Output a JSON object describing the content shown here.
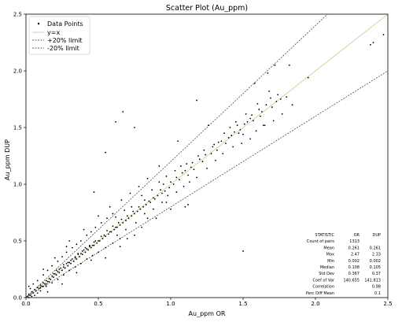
{
  "chart_data": {
    "type": "scatter",
    "title": "Scatter Plot (Au_ppm)",
    "xlabel": "Au_ppm OR",
    "ylabel": "Au_ppm DUP",
    "xlim": [
      0,
      2.5
    ],
    "ylim": [
      0,
      2.5
    ],
    "xticks": [
      "0.0",
      "0.5",
      "1.0",
      "1.5",
      "2.0",
      "2.5"
    ],
    "yticks": [
      "0.0",
      "0.5",
      "1.0",
      "1.5",
      "2.0",
      "2.5"
    ],
    "grid": false,
    "legend": {
      "placement": "top-left",
      "entries": [
        "Data Points",
        "y=x",
        "+20% limit",
        "-20% limit"
      ]
    },
    "colors": {
      "points": "#000000",
      "identity": "#c8d89a",
      "limits": "#333333"
    },
    "lines": [
      {
        "name": "y=x",
        "slope": 1.0
      },
      {
        "name": "+20% limit",
        "slope": 1.2
      },
      {
        "name": "-20% limit",
        "slope": 0.8
      }
    ],
    "points": [
      [
        0.67,
        1.64
      ],
      [
        0.75,
        1.5
      ],
      [
        0.55,
        1.28
      ],
      [
        0.62,
        1.55
      ],
      [
        0.47,
        0.93
      ],
      [
        1.18,
        1.74
      ],
      [
        1.05,
        1.38
      ],
      [
        1.26,
        1.52
      ],
      [
        1.5,
        1.44
      ],
      [
        1.65,
        1.52
      ],
      [
        1.72,
        2.05
      ],
      [
        1.82,
        2.05
      ],
      [
        1.95,
        1.94
      ],
      [
        2.38,
        2.23
      ],
      [
        2.4,
        2.25
      ],
      [
        2.47,
        2.32
      ],
      [
        1.58,
        1.89
      ],
      [
        1.67,
        1.98
      ],
      [
        1.73,
        1.73
      ],
      [
        1.8,
        1.77
      ],
      [
        1.68,
        1.82
      ],
      [
        1.6,
        1.71
      ],
      [
        1.42,
        1.43
      ],
      [
        1.55,
        1.58
      ],
      [
        1.45,
        1.55
      ],
      [
        1.38,
        1.36
      ],
      [
        1.3,
        1.35
      ],
      [
        1.52,
        1.62
      ],
      [
        1.62,
        1.6
      ],
      [
        1.48,
        1.48
      ],
      [
        1.22,
        1.2
      ],
      [
        1.12,
        1.08
      ],
      [
        1.0,
        1.02
      ],
      [
        0.95,
        1.0
      ],
      [
        0.92,
        1.16
      ],
      [
        0.84,
        0.7
      ],
      [
        0.8,
        0.62
      ],
      [
        0.7,
        0.52
      ],
      [
        1.1,
        0.8
      ],
      [
        1.12,
        0.82
      ],
      [
        0.97,
        0.84
      ],
      [
        0.94,
        0.92
      ],
      [
        0.88,
        0.88
      ],
      [
        0.85,
        0.85
      ],
      [
        0.82,
        0.86
      ],
      [
        0.78,
        0.8
      ],
      [
        0.74,
        0.76
      ],
      [
        0.7,
        0.72
      ],
      [
        0.66,
        0.69
      ],
      [
        0.64,
        0.66
      ],
      [
        0.62,
        0.62
      ],
      [
        0.6,
        0.63
      ],
      [
        0.58,
        0.58
      ],
      [
        0.56,
        0.59
      ],
      [
        0.54,
        0.55
      ],
      [
        0.52,
        0.54
      ],
      [
        0.5,
        0.5
      ],
      [
        0.48,
        0.5
      ],
      [
        0.46,
        0.46
      ],
      [
        0.44,
        0.46
      ],
      [
        0.42,
        0.43
      ],
      [
        0.4,
        0.42
      ],
      [
        0.38,
        0.39
      ],
      [
        0.36,
        0.38
      ],
      [
        0.34,
        0.35
      ],
      [
        0.32,
        0.34
      ],
      [
        0.3,
        0.31
      ],
      [
        0.28,
        0.3
      ],
      [
        0.26,
        0.27
      ],
      [
        0.24,
        0.26
      ],
      [
        0.22,
        0.23
      ],
      [
        0.2,
        0.21
      ],
      [
        0.18,
        0.19
      ],
      [
        0.16,
        0.17
      ],
      [
        0.14,
        0.15
      ],
      [
        0.12,
        0.13
      ],
      [
        0.1,
        0.11
      ],
      [
        0.08,
        0.09
      ],
      [
        0.06,
        0.07
      ],
      [
        0.04,
        0.05
      ],
      [
        0.02,
        0.03
      ],
      [
        0.03,
        0.02
      ],
      [
        0.05,
        0.04
      ],
      [
        0.07,
        0.06
      ],
      [
        0.09,
        0.08
      ],
      [
        0.11,
        0.1
      ],
      [
        0.13,
        0.12
      ],
      [
        0.15,
        0.14
      ],
      [
        0.17,
        0.16
      ],
      [
        0.19,
        0.18
      ],
      [
        0.21,
        0.2
      ],
      [
        0.23,
        0.22
      ],
      [
        0.25,
        0.24
      ],
      [
        0.27,
        0.26
      ],
      [
        0.29,
        0.28
      ],
      [
        0.31,
        0.3
      ],
      [
        0.33,
        0.32
      ],
      [
        0.35,
        0.34
      ],
      [
        0.37,
        0.36
      ],
      [
        0.39,
        0.38
      ],
      [
        0.41,
        0.4
      ],
      [
        0.43,
        0.42
      ],
      [
        0.45,
        0.44
      ],
      [
        0.47,
        0.46
      ],
      [
        0.49,
        0.48
      ],
      [
        0.51,
        0.5
      ],
      [
        0.53,
        0.52
      ],
      [
        0.55,
        0.54
      ],
      [
        0.57,
        0.56
      ],
      [
        0.59,
        0.58
      ],
      [
        0.61,
        0.6
      ],
      [
        0.63,
        0.62
      ],
      [
        0.65,
        0.64
      ],
      [
        0.67,
        0.66
      ],
      [
        0.69,
        0.68
      ],
      [
        0.71,
        0.7
      ],
      [
        0.73,
        0.72
      ],
      [
        0.75,
        0.74
      ],
      [
        0.77,
        0.76
      ],
      [
        0.79,
        0.78
      ],
      [
        0.81,
        0.8
      ],
      [
        0.83,
        0.82
      ],
      [
        0.86,
        0.84
      ],
      [
        0.89,
        0.87
      ],
      [
        0.91,
        0.9
      ],
      [
        0.93,
        0.95
      ],
      [
        0.96,
        0.94
      ],
      [
        0.99,
        0.97
      ],
      [
        1.02,
        1.0
      ],
      [
        1.04,
        1.06
      ],
      [
        1.06,
        1.04
      ],
      [
        1.08,
        1.1
      ],
      [
        1.1,
        1.12
      ],
      [
        1.14,
        1.15
      ],
      [
        1.16,
        1.13
      ],
      [
        1.2,
        1.22
      ],
      [
        1.24,
        1.26
      ],
      [
        1.28,
        1.27
      ],
      [
        1.32,
        1.3
      ],
      [
        1.35,
        1.38
      ],
      [
        1.4,
        1.41
      ],
      [
        1.44,
        1.46
      ],
      [
        1.47,
        1.45
      ],
      [
        1.53,
        1.55
      ],
      [
        1.57,
        1.56
      ],
      [
        1.63,
        1.64
      ],
      [
        1.7,
        1.68
      ],
      [
        1.76,
        1.75
      ],
      [
        0.05,
        0.12
      ],
      [
        0.08,
        0.15
      ],
      [
        0.12,
        0.2
      ],
      [
        0.15,
        0.24
      ],
      [
        0.18,
        0.28
      ],
      [
        0.22,
        0.32
      ],
      [
        0.25,
        0.36
      ],
      [
        0.28,
        0.4
      ],
      [
        0.32,
        0.44
      ],
      [
        0.35,
        0.47
      ],
      [
        0.38,
        0.5
      ],
      [
        0.42,
        0.55
      ],
      [
        0.45,
        0.58
      ],
      [
        0.48,
        0.62
      ],
      [
        0.52,
        0.66
      ],
      [
        0.56,
        0.7
      ],
      [
        0.6,
        0.74
      ],
      [
        0.1,
        0.06
      ],
      [
        0.14,
        0.1
      ],
      [
        0.18,
        0.13
      ],
      [
        0.22,
        0.16
      ],
      [
        0.26,
        0.2
      ],
      [
        0.3,
        0.24
      ],
      [
        0.34,
        0.27
      ],
      [
        0.38,
        0.3
      ],
      [
        0.42,
        0.34
      ],
      [
        0.46,
        0.37
      ],
      [
        0.5,
        0.4
      ],
      [
        0.55,
        0.44
      ],
      [
        0.6,
        0.48
      ],
      [
        0.65,
        0.52
      ],
      [
        0.12,
        0.25
      ],
      [
        0.2,
        0.35
      ],
      [
        0.28,
        0.45
      ],
      [
        0.15,
        0.05
      ],
      [
        0.25,
        0.12
      ],
      [
        0.35,
        0.22
      ],
      [
        0.45,
        0.33
      ],
      [
        0.3,
        0.5
      ],
      [
        0.4,
        0.6
      ],
      [
        0.5,
        0.72
      ],
      [
        0.58,
        0.8
      ],
      [
        0.66,
        0.86
      ],
      [
        0.72,
        0.92
      ],
      [
        0.78,
        0.98
      ],
      [
        0.84,
        1.05
      ],
      [
        0.55,
        0.35
      ],
      [
        0.65,
        0.45
      ],
      [
        0.75,
        0.55
      ],
      [
        0.9,
        0.7
      ],
      [
        1.0,
        0.78
      ],
      [
        1.5,
        0.41
      ],
      [
        0.02,
        0.1
      ],
      [
        0.03,
        0.08
      ],
      [
        0.01,
        0.01
      ],
      [
        0.02,
        0.0
      ],
      [
        0.04,
        0.01
      ],
      [
        0.06,
        0.02
      ],
      [
        0.08,
        0.04
      ],
      [
        0.1,
        0.09
      ],
      [
        0.12,
        0.1
      ],
      [
        0.14,
        0.12
      ],
      [
        0.16,
        0.14
      ],
      [
        0.19,
        0.21
      ],
      [
        0.21,
        0.24
      ],
      [
        0.23,
        0.25
      ],
      [
        0.26,
        0.29
      ],
      [
        0.29,
        0.31
      ],
      [
        0.31,
        0.33
      ],
      [
        0.34,
        0.36
      ],
      [
        0.36,
        0.39
      ],
      [
        0.39,
        0.41
      ],
      [
        0.41,
        0.44
      ],
      [
        0.44,
        0.45
      ],
      [
        0.47,
        0.49
      ],
      [
        0.62,
        0.71
      ],
      [
        0.68,
        0.77
      ],
      [
        0.73,
        0.8
      ],
      [
        0.8,
        0.9
      ],
      [
        0.87,
        0.95
      ],
      [
        0.92,
        1.02
      ],
      [
        0.97,
        1.07
      ],
      [
        1.03,
        1.12
      ],
      [
        1.07,
        1.16
      ],
      [
        1.11,
        1.18
      ],
      [
        1.15,
        1.19
      ],
      [
        1.19,
        1.25
      ],
      [
        1.23,
        1.3
      ],
      [
        1.29,
        1.33
      ],
      [
        1.33,
        1.37
      ],
      [
        1.37,
        1.45
      ],
      [
        1.41,
        1.5
      ],
      [
        1.46,
        1.52
      ],
      [
        1.51,
        1.53
      ],
      [
        1.56,
        1.61
      ],
      [
        1.61,
        1.66
      ],
      [
        1.66,
        1.7
      ],
      [
        1.69,
        1.76
      ],
      [
        1.74,
        1.79
      ],
      [
        0.63,
        0.55
      ],
      [
        0.69,
        0.6
      ],
      [
        0.76,
        0.66
      ],
      [
        0.82,
        0.74
      ],
      [
        0.88,
        0.78
      ],
      [
        0.94,
        0.84
      ],
      [
        0.98,
        0.9
      ],
      [
        1.04,
        0.93
      ],
      [
        1.09,
        0.98
      ],
      [
        1.13,
        1.02
      ],
      [
        1.18,
        1.06
      ],
      [
        1.25,
        1.14
      ],
      [
        1.31,
        1.21
      ],
      [
        1.36,
        1.27
      ],
      [
        1.43,
        1.33
      ],
      [
        1.49,
        1.36
      ],
      [
        1.55,
        1.4
      ],
      [
        1.59,
        1.47
      ],
      [
        1.64,
        1.52
      ],
      [
        1.71,
        1.56
      ],
      [
        1.77,
        1.62
      ],
      [
        1.84,
        1.7
      ]
    ],
    "stats_table": {
      "headers": [
        "STATISTIC",
        "OR",
        "DUP"
      ],
      "rows": [
        [
          "Count of pairs",
          "1313",
          ""
        ],
        [
          "Mean",
          "0.261",
          "0.261"
        ],
        [
          "Max",
          "2.47",
          "2.33"
        ],
        [
          "Min",
          "0.002",
          "0.002"
        ],
        [
          "Median",
          "0.108",
          "0.105"
        ],
        [
          "Std Dev",
          "0.367",
          "0.37"
        ],
        [
          "Coef of Var",
          "140.655",
          "141.813"
        ],
        [
          "Correlation",
          "",
          "0.98"
        ],
        [
          "Perc Diff Mean",
          "",
          "0.1"
        ]
      ]
    }
  }
}
